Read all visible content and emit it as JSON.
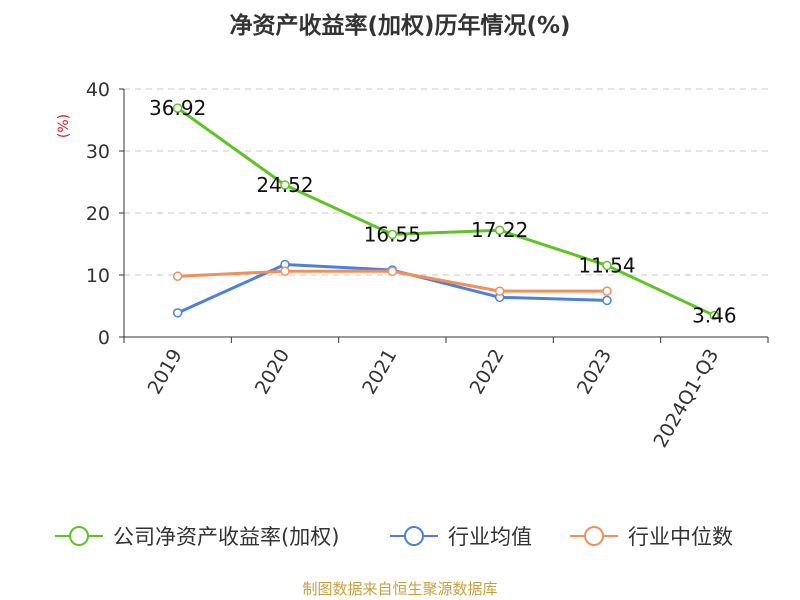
{
  "chart_data": {
    "type": "line",
    "title": "净资产收益率(加权)历年情况(%)",
    "ylabel": "(%)",
    "xlabel": "",
    "categories": [
      "2019",
      "2020",
      "2021",
      "2022",
      "2023",
      "2024Q1-Q3"
    ],
    "yticks": [
      "0",
      "10",
      "20",
      "30",
      "40"
    ],
    "ylim": [
      0,
      40
    ],
    "grid": true,
    "legend_position": "bottom",
    "series": [
      {
        "name": "公司净资产收益率(加权)",
        "color": "#5ec424",
        "values": [
          36.92,
          24.52,
          16.55,
          17.22,
          11.54,
          3.46
        ],
        "labels": [
          "36.92",
          "24.52",
          "16.55",
          "17.22",
          "11.54",
          "3.46"
        ]
      },
      {
        "name": "行业均值",
        "color": "#4f7fde",
        "values": [
          3.9,
          11.7,
          10.8,
          6.4,
          5.9,
          null
        ]
      },
      {
        "name": "行业中位数",
        "color": "#f0905a",
        "values": [
          9.8,
          10.6,
          10.6,
          7.4,
          7.4,
          null
        ]
      }
    ]
  },
  "footer": {
    "source": "制图数据来自恒生聚源数据库"
  }
}
